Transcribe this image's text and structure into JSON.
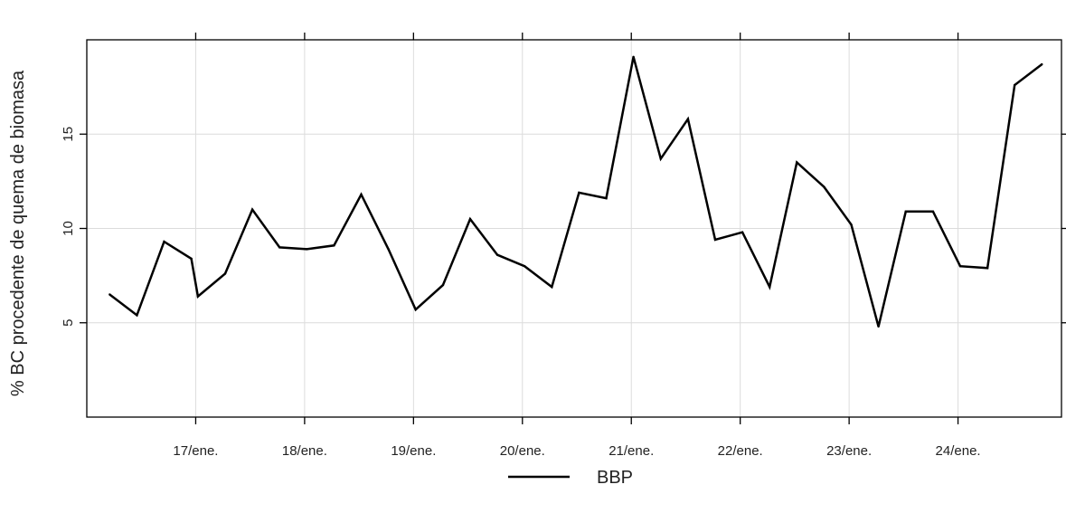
{
  "chart_data": {
    "type": "line",
    "ylabel": "% BC procedente de quema de biomasa",
    "xlabel": "",
    "ylim": [
      0,
      20
    ],
    "yticks": [
      5,
      10,
      15
    ],
    "x_unit": "day (January)",
    "xlim": [
      16.0,
      24.95
    ],
    "xticks": [
      {
        "value": 17,
        "label": "17/ene."
      },
      {
        "value": 18,
        "label": "18/ene."
      },
      {
        "value": 19,
        "label": "19/ene."
      },
      {
        "value": 20,
        "label": "20/ene."
      },
      {
        "value": 21,
        "label": "21/ene."
      },
      {
        "value": 22,
        "label": "22/ene."
      },
      {
        "value": 23,
        "label": "23/ene."
      },
      {
        "value": 24,
        "label": "24/ene."
      }
    ],
    "grid": true,
    "legend_position": "bottom",
    "series": [
      {
        "name": "BBP",
        "color": "#000000",
        "x": [
          16.21,
          16.46,
          16.71,
          16.96,
          17.02,
          17.27,
          17.52,
          17.77,
          18.02,
          18.27,
          18.52,
          18.77,
          19.02,
          19.27,
          19.52,
          19.77,
          20.02,
          20.27,
          20.52,
          20.77,
          21.02,
          21.27,
          21.52,
          21.77,
          22.02,
          22.27,
          22.52,
          22.77,
          23.02,
          23.27,
          23.52,
          23.77,
          24.02,
          24.27,
          24.52,
          24.77
        ],
        "y": [
          6.5,
          5.4,
          9.3,
          8.4,
          6.4,
          7.6,
          11.0,
          9.0,
          8.9,
          9.1,
          11.8,
          8.9,
          5.7,
          7.0,
          10.5,
          8.6,
          8.0,
          6.9,
          11.9,
          11.6,
          19.1,
          13.7,
          15.8,
          9.4,
          9.8,
          6.9,
          13.5,
          12.2,
          10.2,
          4.8,
          10.9,
          10.9,
          8.0,
          7.9,
          17.6,
          18.7
        ]
      }
    ]
  }
}
